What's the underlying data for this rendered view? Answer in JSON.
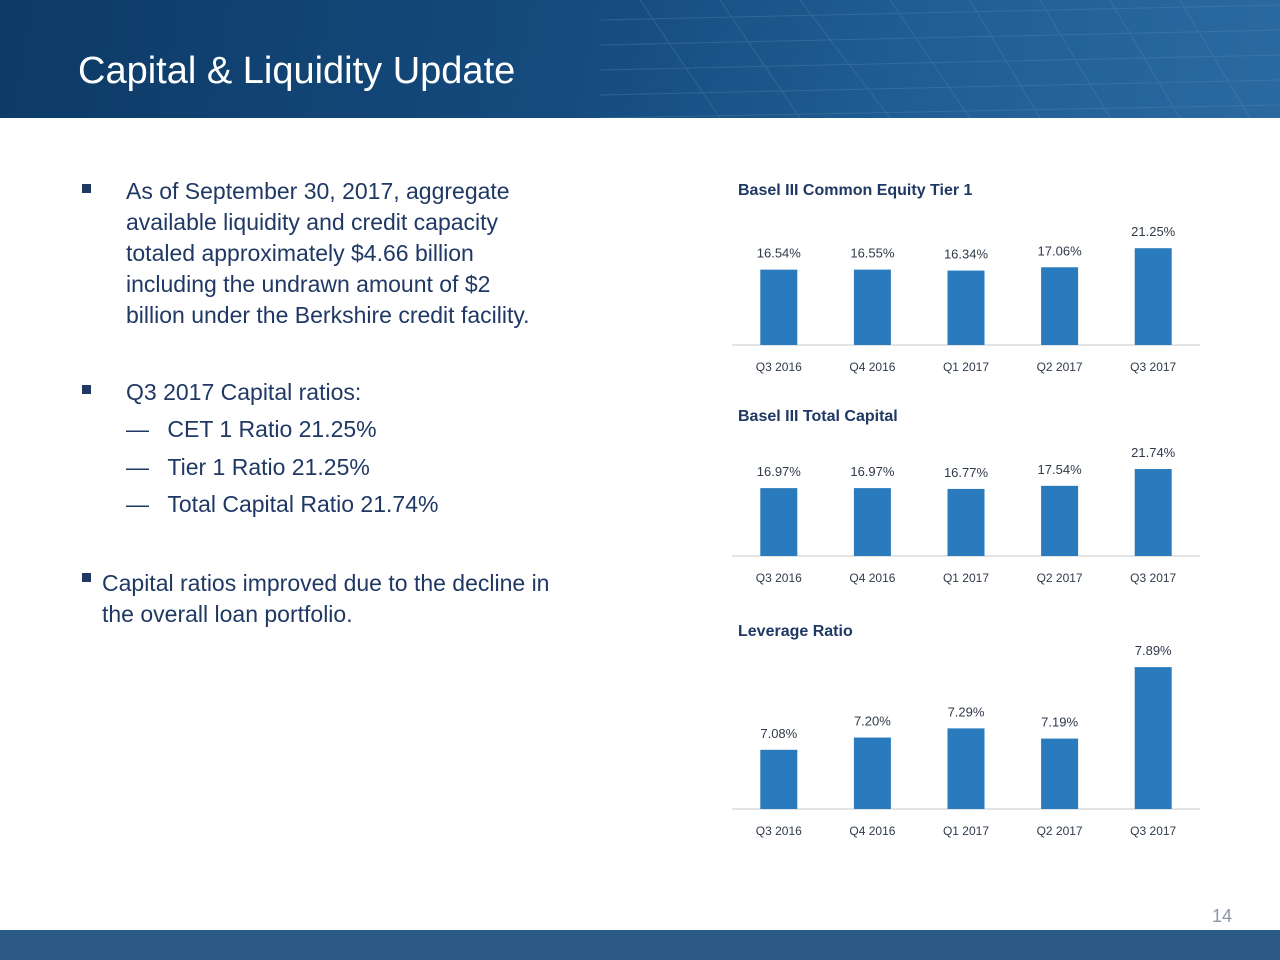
{
  "header": {
    "title": "Capital & Liquidity Update"
  },
  "bullets": [
    {
      "text": "As of September 30, 2017, aggregate\navailable liquidity and credit capacity\ntotaled approximately $4.66 billion\nincluding the undrawn amount of $2\nbillion under the Berkshire credit facility."
    },
    {
      "text": "Q3 2017 Capital ratios:"
    },
    {
      "text": "Capital ratios improved due to the decline in\nthe overall loan portfolio."
    }
  ],
  "sub_bullets": [
    {
      "dash": "—",
      "text": "CET 1 Ratio 21.25%"
    },
    {
      "dash": "—",
      "text": "Tier 1  Ratio 21.25%"
    },
    {
      "dash": "—",
      "text": "Total Capital Ratio 21.74%"
    }
  ],
  "chart_data": [
    {
      "type": "bar",
      "title": "Basel III Common Equity Tier 1",
      "categories": [
        "Q3 2016",
        "Q4 2016",
        "Q1 2017",
        "Q2 2017",
        "Q3 2017"
      ],
      "values": [
        16.54,
        16.55,
        16.34,
        17.06,
        21.25
      ],
      "data_labels": [
        "16.54%",
        "16.55%",
        "16.34%",
        "17.06%",
        "21.25%"
      ],
      "ylim": [
        0,
        27
      ],
      "grid": false,
      "color": "#2a7bbd"
    },
    {
      "type": "bar",
      "title": "Basel III Total Capital",
      "categories": [
        "Q3 2016",
        "Q4 2016",
        "Q1 2017",
        "Q2 2017",
        "Q3 2017"
      ],
      "values": [
        16.97,
        16.97,
        16.77,
        17.54,
        21.74
      ],
      "data_labels": [
        "16.97%",
        "16.97%",
        "16.77%",
        "17.54%",
        "21.74%"
      ],
      "ylim": [
        0,
        27
      ],
      "grid": false,
      "color": "#2a7bbd"
    },
    {
      "type": "bar",
      "title": "Leverage Ratio",
      "categories": [
        "Q3 2016",
        "Q4 2016",
        "Q1 2017",
        "Q2 2017",
        "Q3 2017"
      ],
      "values": [
        7.08,
        7.2,
        7.29,
        7.19,
        7.89
      ],
      "data_labels": [
        "7.08%",
        "7.20%",
        "7.29%",
        "7.19%",
        "7.89%"
      ],
      "ylim": [
        6.5,
        7.95
      ],
      "grid": false,
      "color": "#2a7bbd"
    }
  ],
  "footer": {
    "page_number": "14"
  },
  "colors": {
    "header": "#154b7e",
    "text": "#1f3864",
    "bar": "#2a7bbd",
    "footer": "#2a5a85"
  }
}
